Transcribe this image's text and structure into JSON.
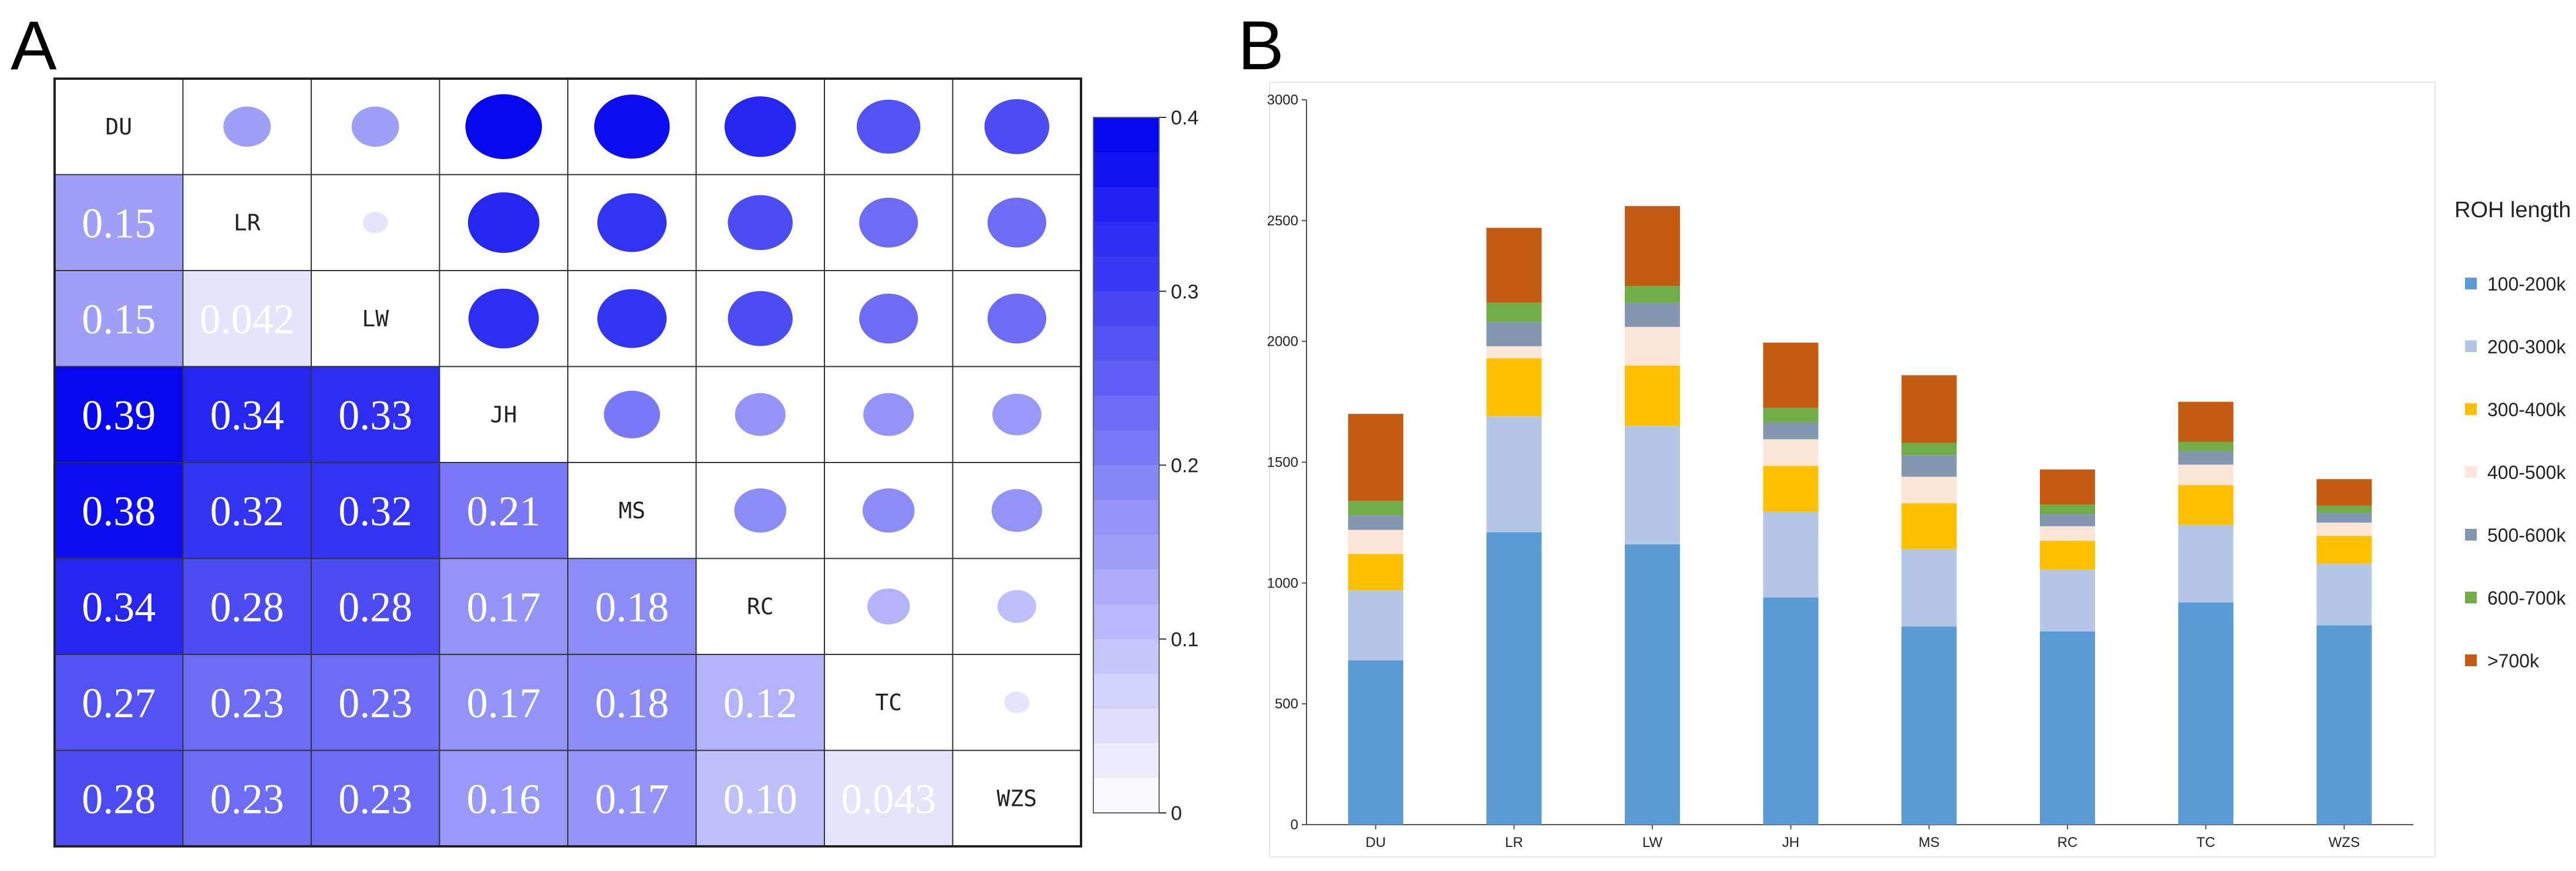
{
  "panel_a": {
    "label": "A",
    "type": "correlation-matrix",
    "variables": [
      "DU",
      "LR",
      "LW",
      "JH",
      "MS",
      "RC",
      "TC",
      "WZS"
    ],
    "lower_values": [
      [],
      [
        "0.15"
      ],
      [
        "0.15",
        "0.042"
      ],
      [
        "0.39",
        "0.34",
        "0.33"
      ],
      [
        "0.38",
        "0.32",
        "0.32",
        "0.21"
      ],
      [
        "0.34",
        "0.28",
        "0.28",
        "0.17",
        "0.18"
      ],
      [
        "0.27",
        "0.23",
        "0.23",
        "0.17",
        "0.18",
        "0.12"
      ],
      [
        "0.28",
        "0.23",
        "0.23",
        "0.16",
        "0.17",
        "0.10",
        "0.043"
      ]
    ],
    "colorbar": {
      "min": 0,
      "max": 0.4,
      "ticks": [
        "0",
        "0.1",
        "0.2",
        "0.3",
        "0.4"
      ],
      "low_color": "#ffffff",
      "high_color": "#0000f0"
    }
  },
  "chart_data": {
    "type": "bar",
    "stacked": true,
    "label": "B",
    "categories": [
      "DU",
      "LR",
      "LW",
      "JH",
      "MS",
      "RC",
      "TC",
      "WZS"
    ],
    "ylim": [
      0,
      3000
    ],
    "yticks": [
      "0",
      "500",
      "1000",
      "1500",
      "2000",
      "2500",
      "3000"
    ],
    "legend_title": "ROH length",
    "legend_position": "right",
    "series": [
      {
        "name": "100-200k",
        "color": "#5b9bd5",
        "values": [
          680,
          1210,
          1160,
          940,
          820,
          800,
          920,
          825
        ]
      },
      {
        "name": "200-300k",
        "color": "#b4c7e7",
        "values": [
          290,
          480,
          490,
          355,
          320,
          255,
          320,
          255
        ]
      },
      {
        "name": "300-400k",
        "color": "#ffc000",
        "values": [
          150,
          240,
          250,
          190,
          190,
          120,
          165,
          115
        ]
      },
      {
        "name": "400-500k",
        "color": "#fbe5d6",
        "values": [
          100,
          50,
          160,
          110,
          110,
          60,
          85,
          55
        ]
      },
      {
        "name": "500-600k",
        "color": "#8497b0",
        "values": [
          60,
          100,
          100,
          70,
          90,
          50,
          55,
          40
        ]
      },
      {
        "name": "600-700k",
        "color": "#70ad47",
        "values": [
          60,
          80,
          70,
          60,
          50,
          40,
          40,
          30
        ]
      },
      {
        "name": ">700k",
        "color": "#c55a11",
        "values": [
          360,
          310,
          330,
          270,
          280,
          145,
          165,
          110
        ]
      }
    ]
  }
}
